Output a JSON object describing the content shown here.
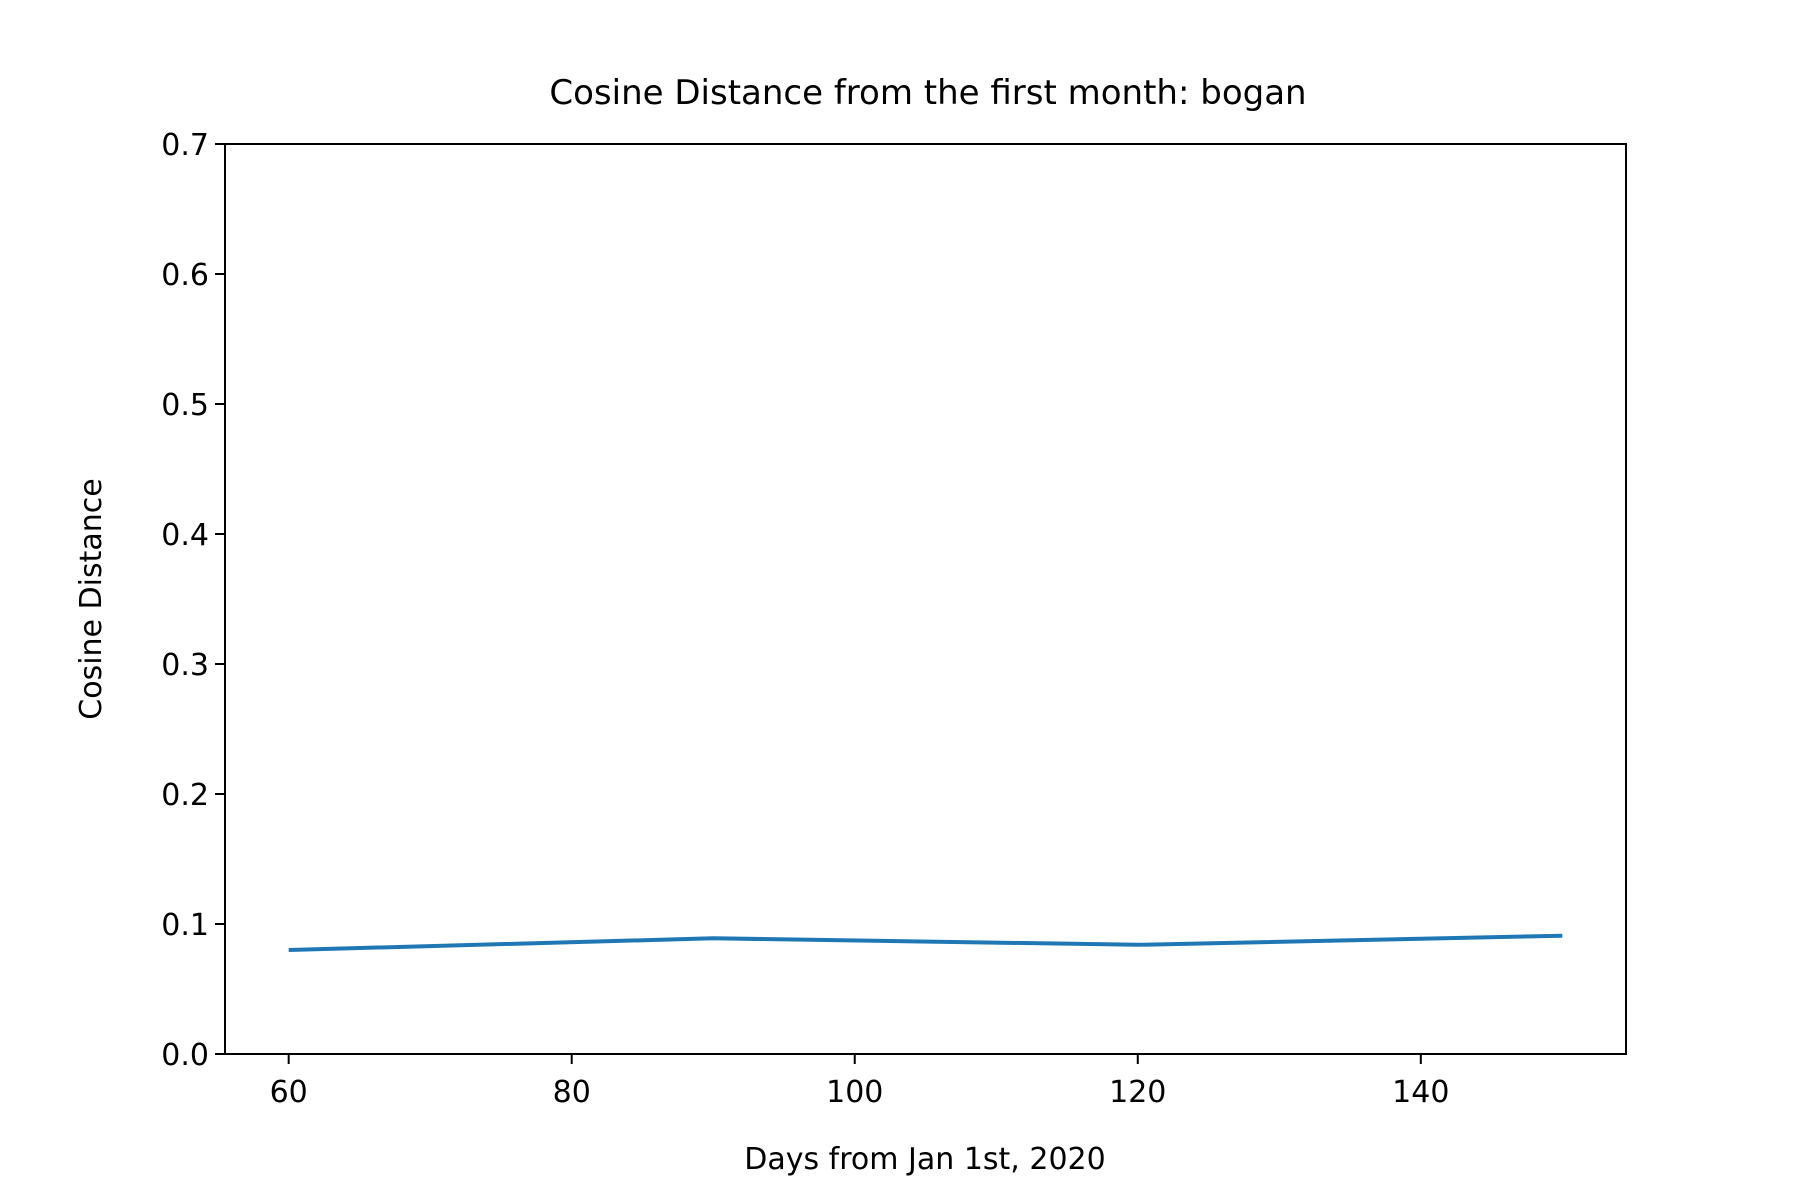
{
  "chart_data": {
    "type": "line",
    "title": "Cosine Distance from the first month: bogan",
    "xlabel": "Days from Jan 1st, 2020",
    "ylabel": "Cosine Distance",
    "xlim": [
      55.5,
      154.5
    ],
    "ylim": [
      0,
      0.7
    ],
    "x_ticks": [
      60,
      80,
      100,
      120,
      140
    ],
    "x_tick_labels": [
      "60",
      "80",
      "100",
      "120",
      "140"
    ],
    "y_ticks": [
      0,
      0.1,
      0.2,
      0.3,
      0.4,
      0.5,
      0.6,
      0.7
    ],
    "y_tick_labels": [
      "0.0",
      "0.1",
      "0.2",
      "0.3",
      "0.4",
      "0.5",
      "0.6",
      "0.7"
    ],
    "grid": false,
    "legend": "none",
    "series": [
      {
        "color": "#1f77b4",
        "x": [
          60,
          90,
          120,
          150
        ],
        "y": [
          0.08,
          0.089,
          0.084,
          0.091
        ]
      }
    ]
  }
}
